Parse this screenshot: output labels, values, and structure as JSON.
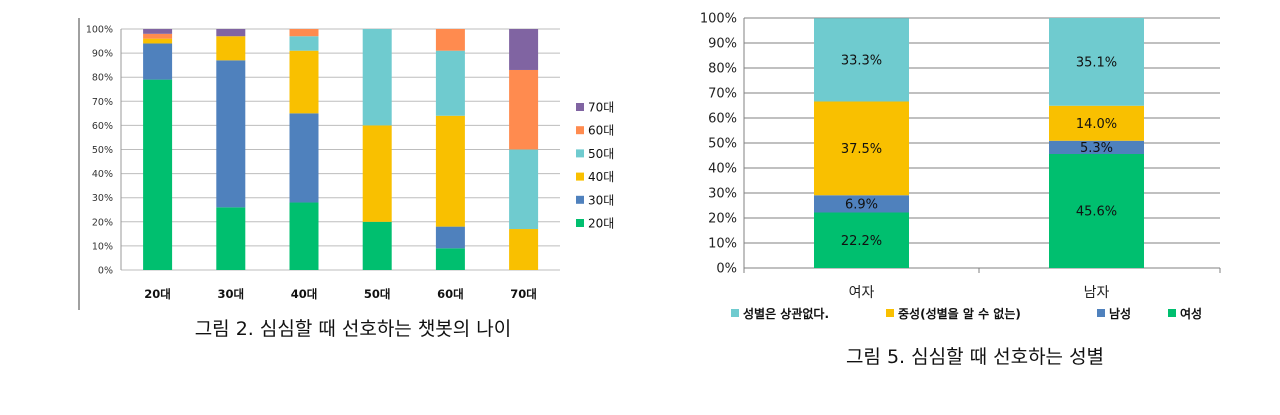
{
  "chart_data": [
    {
      "type": "bar",
      "stacked": true,
      "percent": true,
      "caption": "그림 2. 심심할 때 선호하는 챗봇의 나이",
      "categories": [
        "20대",
        "30대",
        "40대",
        "50대",
        "60대",
        "70대"
      ],
      "yticks": [
        "0%",
        "10%",
        "20%",
        "30%",
        "40%",
        "50%",
        "60%",
        "70%",
        "80%",
        "90%",
        "100%"
      ],
      "ylim": [
        0,
        100
      ],
      "grid": true,
      "legend_position": "right",
      "series": [
        {
          "name": "20대",
          "color": "#00bf6f",
          "values": [
            79,
            26,
            28,
            20,
            9,
            0
          ]
        },
        {
          "name": "30대",
          "color": "#4f81bd",
          "values": [
            15,
            61,
            37,
            0,
            9,
            0
          ]
        },
        {
          "name": "40대",
          "color": "#f9c000",
          "values": [
            2,
            10,
            26,
            40,
            46,
            17
          ]
        },
        {
          "name": "50대",
          "color": "#6fcbcf",
          "values": [
            0,
            0,
            6,
            40,
            27,
            33
          ]
        },
        {
          "name": "60대",
          "color": "#ff8b4f",
          "values": [
            2,
            0,
            3,
            0,
            9,
            33
          ]
        },
        {
          "name": "70대",
          "color": "#8064a2",
          "values": [
            2,
            3,
            0,
            0,
            0,
            17
          ]
        }
      ]
    },
    {
      "type": "bar",
      "stacked": true,
      "percent": true,
      "caption": "그림 5. 심심할 때 선호하는 성별",
      "categories": [
        "여자",
        "남자"
      ],
      "yticks": [
        "0%",
        "10%",
        "20%",
        "30%",
        "40%",
        "50%",
        "60%",
        "70%",
        "80%",
        "90%",
        "100%"
      ],
      "ylim": [
        0,
        100
      ],
      "grid": true,
      "legend_position": "bottom",
      "series": [
        {
          "name": "여성",
          "color": "#00bf6f",
          "values": [
            22.2,
            45.6
          ],
          "labels": [
            "22.2%",
            "45.6%"
          ]
        },
        {
          "name": "남성",
          "color": "#4f81bd",
          "values": [
            6.9,
            5.3
          ],
          "labels": [
            "6.9%",
            "5.3%"
          ]
        },
        {
          "name": "중성(성별을 알 수 없는)",
          "color": "#f9c000",
          "values": [
            37.5,
            14.0
          ],
          "labels": [
            "37.5%",
            "14.0%"
          ]
        },
        {
          "name": "성별은 상관없다.",
          "color": "#6fcbcf",
          "values": [
            33.3,
            35.1
          ],
          "labels": [
            "33.3%",
            "35.1%"
          ]
        }
      ],
      "legend_order": [
        3,
        2,
        1,
        0
      ]
    }
  ]
}
